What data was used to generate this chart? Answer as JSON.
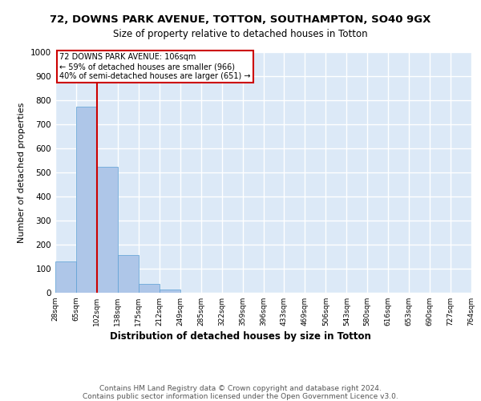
{
  "title1": "72, DOWNS PARK AVENUE, TOTTON, SOUTHAMPTON, SO40 9GX",
  "title2": "Size of property relative to detached houses in Totton",
  "xlabel": "Distribution of detached houses by size in Totton",
  "ylabel": "Number of detached properties",
  "bin_labels": [
    "28sqm",
    "65sqm",
    "102sqm",
    "138sqm",
    "175sqm",
    "212sqm",
    "249sqm",
    "285sqm",
    "322sqm",
    "359sqm",
    "396sqm",
    "433sqm",
    "469sqm",
    "506sqm",
    "543sqm",
    "580sqm",
    "616sqm",
    "653sqm",
    "690sqm",
    "727sqm",
    "764sqm"
  ],
  "bar_values": [
    130,
    775,
    525,
    158,
    37,
    14,
    0,
    0,
    0,
    0,
    0,
    0,
    0,
    0,
    0,
    0,
    0,
    0,
    0,
    0
  ],
  "bar_color": "#aec6e8",
  "bar_edge_color": "#5a9fd4",
  "vline_x": 2,
  "vline_color": "#cc0000",
  "annotation_text": "72 DOWNS PARK AVENUE: 106sqm\n← 59% of detached houses are smaller (966)\n40% of semi-detached houses are larger (651) →",
  "annotation_box_color": "white",
  "annotation_box_edge": "#cc0000",
  "ylim": [
    0,
    1000
  ],
  "yticks": [
    0,
    100,
    200,
    300,
    400,
    500,
    600,
    700,
    800,
    900,
    1000
  ],
  "footer": "Contains HM Land Registry data © Crown copyright and database right 2024.\nContains public sector information licensed under the Open Government Licence v3.0.",
  "bg_color": "#dce9f7",
  "grid_color": "#ffffff",
  "title1_fontsize": 9.5,
  "title2_fontsize": 8.5,
  "xlabel_fontsize": 8.5,
  "ylabel_fontsize": 8,
  "footer_fontsize": 6.5
}
